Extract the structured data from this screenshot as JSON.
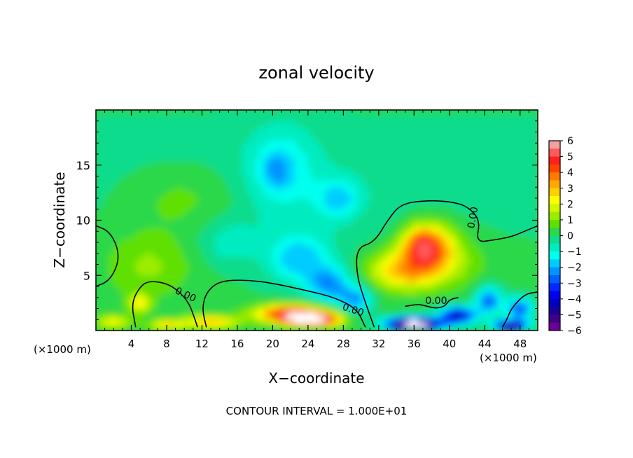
{
  "chart_data": {
    "type": "heatmap",
    "title": "zonal velocity",
    "xlabel": "X−coordinate",
    "ylabel": "Z−coordinate",
    "x_unit_left": "(×1000 m)",
    "x_unit_right": "(×1000 m)",
    "xlim": [
      0,
      50
    ],
    "ylim": [
      0,
      20
    ],
    "x_ticks": [
      4,
      8,
      12,
      16,
      20,
      24,
      28,
      32,
      36,
      40,
      44,
      48
    ],
    "y_ticks": [
      5,
      10,
      15
    ],
    "footer": "CONTOUR INTERVAL = 1.000E+01",
    "contour_level_label": "0.00",
    "colorbar": {
      "ticks": [
        "6",
        "5",
        "4",
        "3",
        "2",
        "1",
        "0",
        "−1",
        "−2",
        "−3",
        "−4",
        "−5",
        "−6"
      ],
      "bands": [
        {
          "from": 5.5,
          "to": 6.0,
          "color": "#f4a0a0"
        },
        {
          "from": 5.0,
          "to": 5.5,
          "color": "#ff5a5a"
        },
        {
          "from": 4.5,
          "to": 5.0,
          "color": "#ff2020"
        },
        {
          "from": 4.0,
          "to": 4.5,
          "color": "#ff4400"
        },
        {
          "from": 3.5,
          "to": 4.0,
          "color": "#ff7a00"
        },
        {
          "from": 3.0,
          "to": 3.5,
          "color": "#ffaa00"
        },
        {
          "from": 2.5,
          "to": 3.0,
          "color": "#ffd000"
        },
        {
          "from": 2.0,
          "to": 2.5,
          "color": "#ffff00"
        },
        {
          "from": 1.5,
          "to": 2.0,
          "color": "#d2f500"
        },
        {
          "from": 1.0,
          "to": 1.5,
          "color": "#9cec00"
        },
        {
          "from": 0.5,
          "to": 1.0,
          "color": "#5ee000"
        },
        {
          "from": 0.0,
          "to": 0.5,
          "color": "#2ad84a"
        },
        {
          "from": -0.5,
          "to": 0.0,
          "color": "#10dc8c"
        },
        {
          "from": -1.0,
          "to": -0.5,
          "color": "#00ecc0"
        },
        {
          "from": -1.5,
          "to": -1.0,
          "color": "#00ffee"
        },
        {
          "from": -2.0,
          "to": -1.5,
          "color": "#00ccff"
        },
        {
          "from": -2.5,
          "to": -2.0,
          "color": "#0094ff"
        },
        {
          "from": -3.0,
          "to": -2.5,
          "color": "#0060ff"
        },
        {
          "from": -3.5,
          "to": -3.0,
          "color": "#0028ff"
        },
        {
          "from": -4.0,
          "to": -3.5,
          "color": "#0000ee"
        },
        {
          "from": -4.5,
          "to": -4.0,
          "color": "#0000c0"
        },
        {
          "from": -5.0,
          "to": -4.5,
          "color": "#1a0098"
        },
        {
          "from": -5.5,
          "to": -5.0,
          "color": "#400088"
        },
        {
          "from": -6.0,
          "to": -5.5,
          "color": "#6a0098"
        }
      ]
    },
    "field_features": [
      {
        "x": 10,
        "z": 12,
        "sx": 7,
        "sz": 3,
        "v": 0.8
      },
      {
        "x": 6,
        "z": 6,
        "sx": 5,
        "sz": 3,
        "v": 1.0
      },
      {
        "x": 21,
        "z": 15,
        "sx": 4,
        "sz": 4,
        "v": -1.2
      },
      {
        "x": 20.5,
        "z": 14.5,
        "sx": 1.5,
        "sz": 1.5,
        "v": -1.0
      },
      {
        "x": 27.5,
        "z": 12,
        "sx": 2.5,
        "sz": 1.8,
        "v": -1.5
      },
      {
        "x": 15,
        "z": 8,
        "sx": 3,
        "sz": 2,
        "v": -0.8
      },
      {
        "x": 23,
        "z": 6.5,
        "sx": 3.5,
        "sz": 2.2,
        "v": -1.8
      },
      {
        "x": 26.5,
        "z": 4.2,
        "sx": 2.5,
        "sz": 1.6,
        "v": -2.3
      },
      {
        "x": 29.5,
        "z": 2.8,
        "sx": 1.8,
        "sz": 1.2,
        "v": -2.2
      },
      {
        "x": 35,
        "z": 5.5,
        "sx": 4,
        "sz": 1.8,
        "v": 3.0
      },
      {
        "x": 38,
        "z": 7.5,
        "sx": 2.8,
        "sz": 2.2,
        "v": 3.6
      },
      {
        "x": 36.5,
        "z": 8,
        "sx": 2,
        "sz": 1.5,
        "v": 1.8
      },
      {
        "x": 42,
        "z": 6,
        "sx": 3,
        "sz": 2.5,
        "v": 0.6
      },
      {
        "x": 22,
        "z": 1.6,
        "sx": 4,
        "sz": 0.8,
        "v": 4.5
      },
      {
        "x": 24.5,
        "z": 1.0,
        "sx": 3,
        "sz": 0.6,
        "v": 6.5
      },
      {
        "x": 13,
        "z": 0.8,
        "sx": 3,
        "sz": 0.6,
        "v": 3.0
      },
      {
        "x": 8,
        "z": 0.5,
        "sx": 2,
        "sz": 0.5,
        "v": 2.5
      },
      {
        "x": 2,
        "z": 0.8,
        "sx": 2,
        "sz": 0.6,
        "v": 2.0
      },
      {
        "x": 36,
        "z": 0.6,
        "sx": 3,
        "sz": 0.6,
        "v": -7.5
      },
      {
        "x": 41,
        "z": 1.4,
        "sx": 2,
        "sz": 0.8,
        "v": -4.5
      },
      {
        "x": 44.5,
        "z": 2.8,
        "sx": 1.5,
        "sz": 1.2,
        "v": -3.0
      },
      {
        "x": 48,
        "z": 2.0,
        "sx": 1.5,
        "sz": 1.0,
        "v": -3.0
      },
      {
        "x": 47,
        "z": 0.5,
        "sx": 2,
        "sz": 0.5,
        "v": -5.0
      },
      {
        "x": 5,
        "z": 2.5,
        "sx": 1.2,
        "sz": 0.8,
        "v": 2.2
      }
    ],
    "contour_lines": [
      [
        [
          0,
          9.5
        ],
        [
          1.5,
          9.0
        ],
        [
          2.5,
          7.5
        ],
        [
          2.5,
          6.0
        ],
        [
          1.5,
          4.5
        ],
        [
          0,
          4.0
        ]
      ],
      [
        [
          4.5,
          0.3
        ],
        [
          4.0,
          2.5
        ],
        [
          5.0,
          4.0
        ],
        [
          6.0,
          4.5
        ],
        [
          8.0,
          4.3
        ],
        [
          9.5,
          3.5
        ],
        [
          10.5,
          2.5
        ],
        [
          11.0,
          1.5
        ],
        [
          11.5,
          0.3
        ]
      ],
      [
        [
          12.5,
          0.3
        ],
        [
          12.0,
          2.0
        ],
        [
          12.5,
          3.5
        ],
        [
          14.0,
          4.5
        ],
        [
          17.0,
          4.6
        ],
        [
          20.0,
          4.3
        ],
        [
          24.0,
          3.6
        ],
        [
          27.0,
          3.0
        ],
        [
          29.5,
          2.0
        ],
        [
          30.5,
          0.3
        ]
      ],
      [
        [
          31.5,
          0.3
        ],
        [
          30.5,
          2.5
        ],
        [
          29.5,
          5.0
        ],
        [
          29.5,
          7.5
        ],
        [
          31.5,
          8.0
        ],
        [
          33.0,
          10.0
        ],
        [
          34.5,
          11.5
        ],
        [
          37.5,
          11.8
        ],
        [
          40.0,
          11.7
        ],
        [
          42.0,
          11.3
        ],
        [
          43.5,
          10.0
        ],
        [
          43.0,
          8.0
        ],
        [
          45.0,
          8.2
        ],
        [
          47.0,
          8.5
        ],
        [
          48.5,
          9.0
        ],
        [
          50,
          9.5
        ]
      ],
      [
        [
          50,
          3.5
        ],
        [
          48.5,
          3.3
        ],
        [
          47.0,
          2.0
        ],
        [
          46.5,
          1.0
        ],
        [
          46.0,
          0.3
        ]
      ],
      [
        [
          35.0,
          2.2
        ],
        [
          36.5,
          2.4
        ],
        [
          37.5,
          2.2
        ],
        [
          38.5,
          2.0
        ],
        [
          39.5,
          2.2
        ],
        [
          40.0,
          2.8
        ],
        [
          41.0,
          3.0
        ]
      ]
    ]
  }
}
